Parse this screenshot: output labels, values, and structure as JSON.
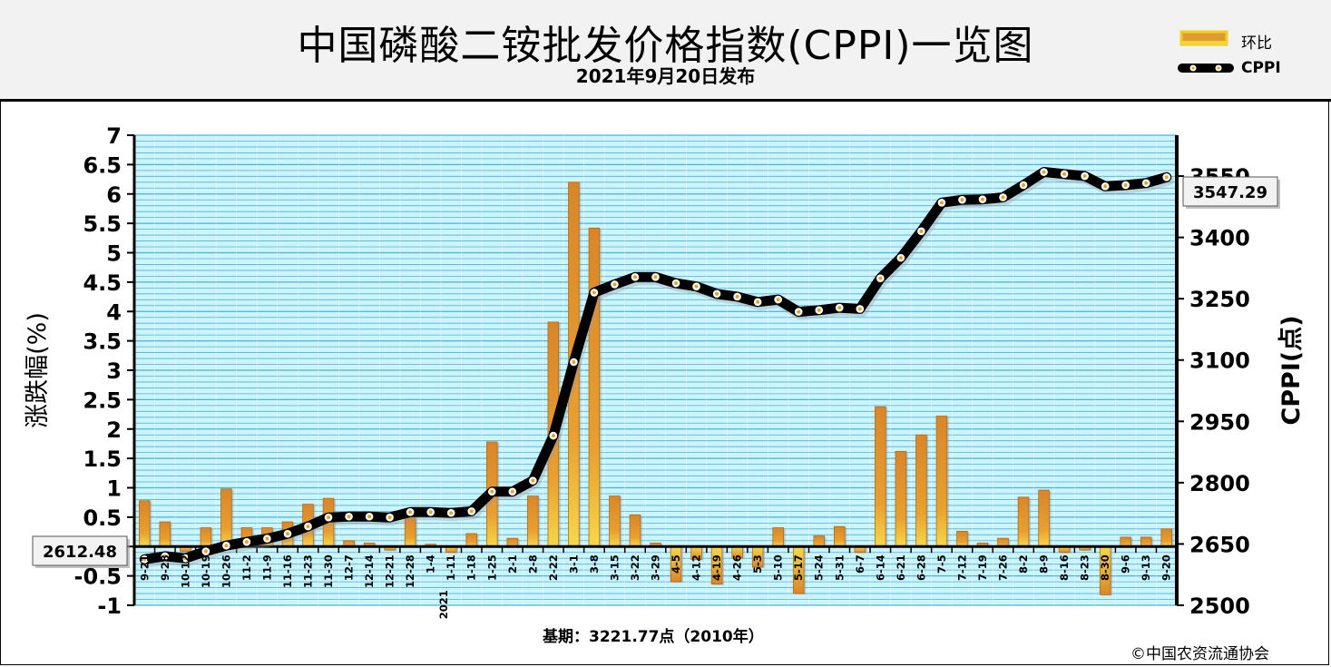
{
  "header": {
    "title": "中国磷酸二铵批发价格指数(CPPI)一览图",
    "subtitle": "2021年9月20日发布"
  },
  "legend": {
    "bar_label": "环比",
    "line_label": "CPPI"
  },
  "footer": {
    "base_period": "基期：3221.77点（2010年）",
    "copyright": "©中国农资流通协会"
  },
  "callouts": {
    "start_value": "2612.48",
    "end_value": "3547.29"
  },
  "colors": {
    "bar_fill": "#e8a030",
    "bar_edge": "#b36a10",
    "line": "#000000",
    "marker_fill": "#ffffff",
    "marker_dot": "#f0a020",
    "plot_bg": "#cdf3fb",
    "grid": "#2ea8d8"
  },
  "chart_data": {
    "type": "bar+line",
    "xlabel": "",
    "ylabel_left": "涨跌幅(%)",
    "ylabel_right": "CPPI(点)",
    "ylim_left": [
      -1,
      7
    ],
    "ylim_right": [
      2500,
      3650
    ],
    "yticks_left": [
      "7",
      "6.5",
      "6",
      "5.5",
      "5",
      "4.5",
      "4",
      "3.5",
      "3",
      "2.5",
      "2",
      "1.5",
      "1",
      "0.5",
      "0",
      "-0.5",
      "-1"
    ],
    "yticks_right": [
      "3550",
      "3400",
      "3250",
      "3100",
      "2950",
      "2800",
      "2650",
      "2500"
    ],
    "year_marker": "2021",
    "year_marker_index": 15,
    "categories": [
      "9-21",
      "9-28",
      "10-12",
      "10-19",
      "10-26",
      "11-2",
      "11-9",
      "11-16",
      "11-23",
      "11-30",
      "12-7",
      "12-14",
      "12-21",
      "12-28",
      "1-4",
      "1-11",
      "1-18",
      "1-25",
      "2-1",
      "2-8",
      "2-22",
      "3-1",
      "3-8",
      "3-15",
      "3-22",
      "3-29",
      "4-5",
      "4-12",
      "4-19",
      "4-26",
      "5-3",
      "5-10",
      "5-17",
      "5-24",
      "5-31",
      "6-7",
      "6-14",
      "6-21",
      "6-28",
      "7-5",
      "7-12",
      "7-19",
      "7-26",
      "8-2",
      "8-9",
      "8-16",
      "8-23",
      "8-30",
      "9-6",
      "9-13",
      "9-20"
    ],
    "series": [
      {
        "name": "环比",
        "type": "bar",
        "values": [
          0.78,
          0.42,
          -0.08,
          0.32,
          0.98,
          0.32,
          0.32,
          0.42,
          0.72,
          0.82,
          0.1,
          0.06,
          -0.06,
          0.5,
          0.04,
          -0.1,
          0.22,
          1.78,
          0.14,
          0.86,
          3.82,
          6.2,
          5.42,
          0.86,
          0.54,
          0.06,
          -0.6,
          -0.22,
          -0.64,
          -0.2,
          -0.35,
          0.32,
          -0.8,
          0.18,
          0.34,
          -0.1,
          2.38,
          1.62,
          1.9,
          2.22,
          0.26,
          0.06,
          0.14,
          0.84,
          0.96,
          -0.1,
          -0.06,
          -0.82,
          0.16,
          0.16,
          0.3
        ]
      },
      {
        "name": "CPPI",
        "type": "line",
        "values": [
          2612.48,
          2620,
          2615,
          2632,
          2646,
          2655,
          2663,
          2675,
          2693,
          2715,
          2717,
          2717,
          2715,
          2728,
          2728,
          2726,
          2730,
          2778,
          2778,
          2805,
          2915,
          3095,
          3265,
          3285,
          3303,
          3303,
          3288,
          3280,
          3262,
          3255,
          3242,
          3248,
          3218,
          3222,
          3228,
          3225,
          3300,
          3350,
          3415,
          3485,
          3492,
          3493,
          3498,
          3528,
          3560,
          3555,
          3550,
          3525,
          3528,
          3533,
          3547.29
        ]
      }
    ],
    "grid": true,
    "legend_position": "top-right"
  }
}
